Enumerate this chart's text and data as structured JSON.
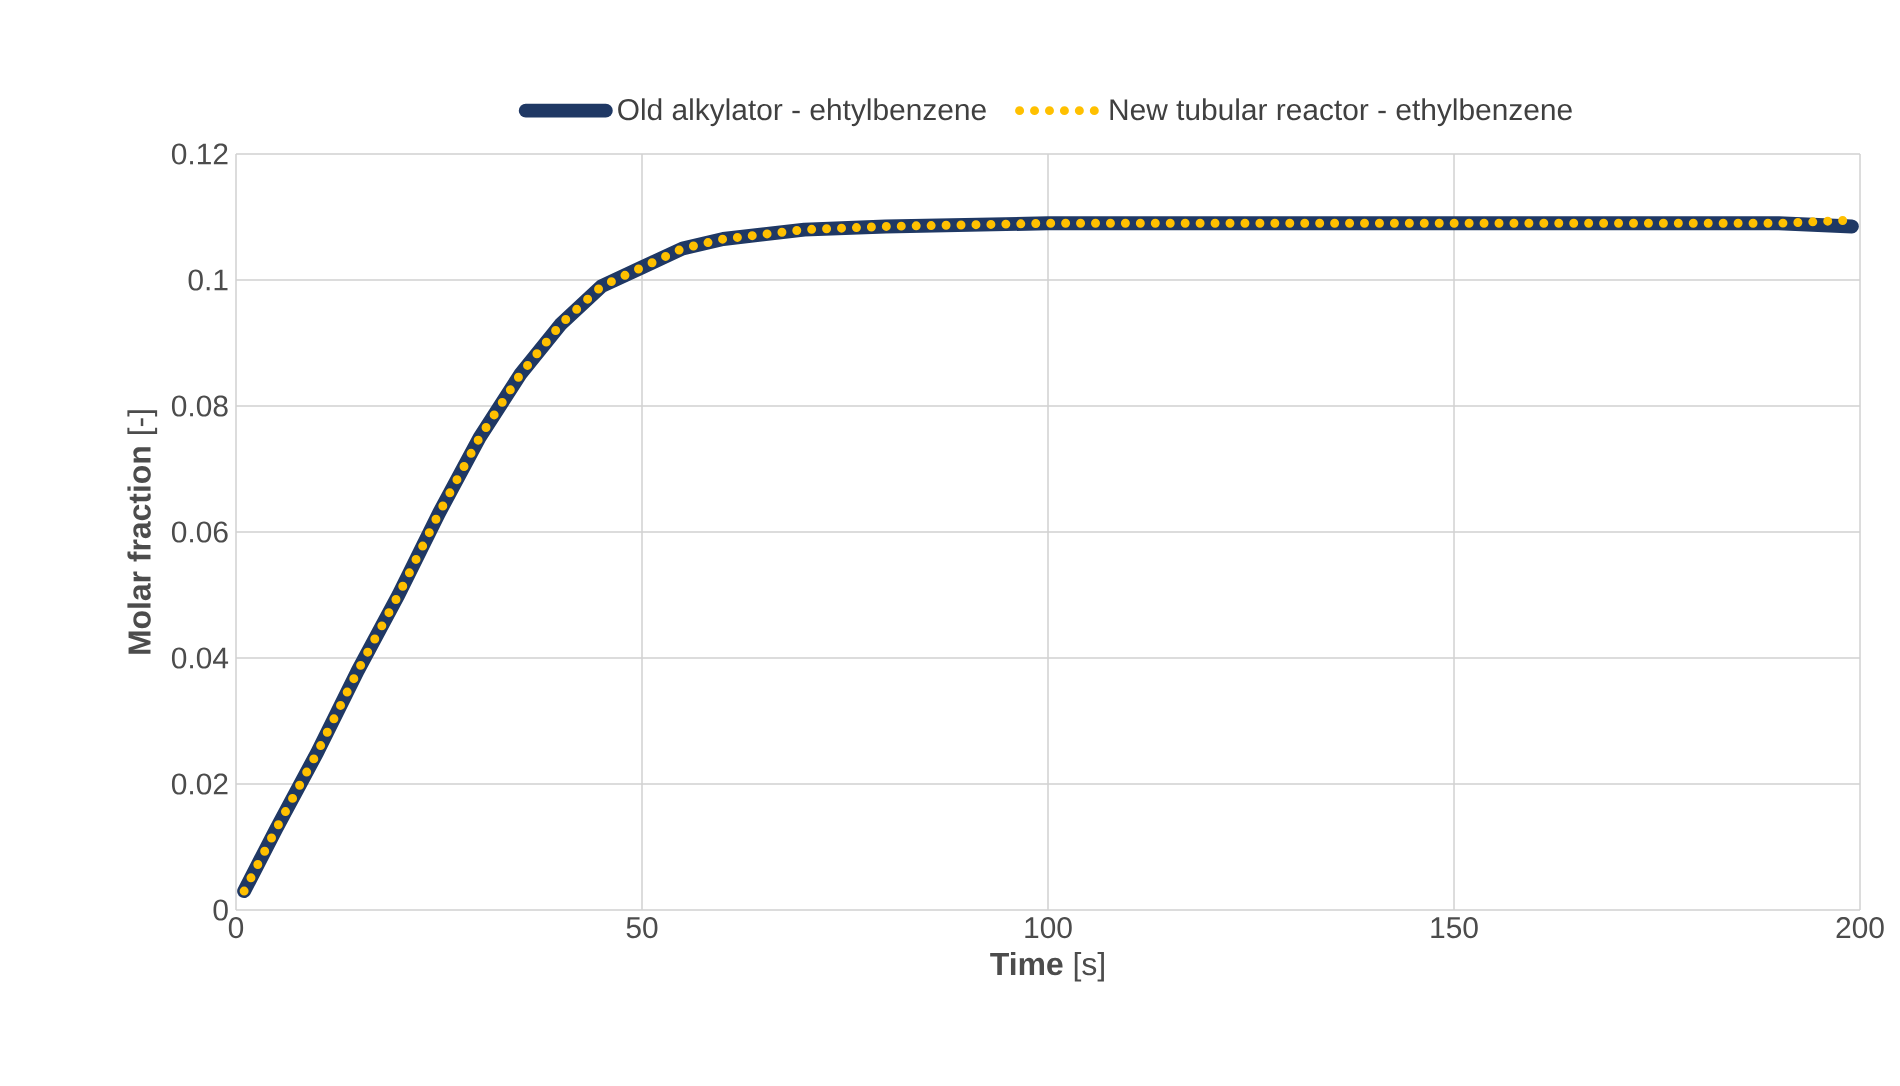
{
  "chart_data": {
    "type": "line",
    "xlabel": "**Time** [s]",
    "ylabel": "**Molar fraction** [-]",
    "xlim": [
      0,
      200
    ],
    "ylim": [
      0,
      0.12
    ],
    "xticks": [
      0,
      50,
      100,
      150,
      200
    ],
    "yticks": [
      0,
      0.02,
      0.04,
      0.06,
      0.08,
      0.1,
      0.12
    ],
    "grid": true,
    "legend": "top",
    "series": [
      {
        "name": "Old alkylator - ehtylbenzene",
        "color": "#1f3864",
        "line_style": "solid",
        "x": [
          1,
          5,
          10,
          15,
          20,
          25,
          30,
          35,
          40,
          45,
          50,
          55,
          60,
          70,
          80,
          100,
          125,
          150,
          175,
          190,
          199
        ],
        "values": [
          0.003,
          0.013,
          0.025,
          0.038,
          0.05,
          0.063,
          0.075,
          0.085,
          0.093,
          0.099,
          0.102,
          0.105,
          0.1065,
          0.108,
          0.1085,
          0.109,
          0.109,
          0.109,
          0.109,
          0.109,
          0.1085
        ]
      },
      {
        "name": "New tubular reactor - ethylbenzene",
        "color": "#ffc000",
        "line_style": "dotted",
        "x": [
          1,
          5,
          10,
          15,
          20,
          25,
          30,
          35,
          40,
          45,
          50,
          55,
          60,
          70,
          80,
          100,
          125,
          150,
          175,
          190,
          199
        ],
        "values": [
          0.003,
          0.013,
          0.025,
          0.038,
          0.05,
          0.063,
          0.075,
          0.085,
          0.093,
          0.099,
          0.102,
          0.105,
          0.1065,
          0.108,
          0.1085,
          0.109,
          0.109,
          0.109,
          0.109,
          0.109,
          0.1095
        ]
      }
    ]
  }
}
